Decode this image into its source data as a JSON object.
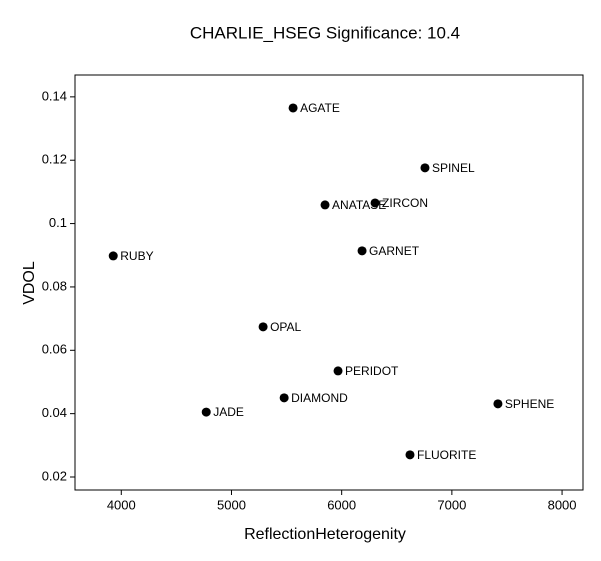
{
  "chart_data": {
    "type": "scatter",
    "title": "CHARLIE_HSEG  Significance:  10.4",
    "xlabel": "ReflectionHeterogenity",
    "ylabel": "VDOL",
    "labels": [
      "AGATE",
      "SPINEL",
      "ZIRCON",
      "ANATASE",
      "RUBY",
      "GARNET",
      "OPAL",
      "PERIDOT",
      "DIAMOND",
      "JADE",
      "SPHENE",
      "FLUORITE"
    ],
    "x": [
      5559,
      6756,
      6303,
      5849,
      3927,
      6185,
      5287,
      5967,
      5478,
      4771,
      7418,
      6620
    ],
    "y": [
      0.1365,
      0.1176,
      0.1065,
      0.1059,
      0.0898,
      0.0914,
      0.0674,
      0.0535,
      0.045,
      0.0405,
      0.0431,
      0.027
    ],
    "color": "#000000",
    "xlim": [
      3580,
      8190
    ],
    "xticks": [
      4000,
      5000,
      6000,
      7000,
      8000
    ],
    "ylim": [
      0.0159,
      0.1469
    ],
    "yticks": [
      0.02,
      0.04,
      0.06,
      0.08,
      0.1,
      0.12,
      0.14
    ],
    "grid": false
  }
}
